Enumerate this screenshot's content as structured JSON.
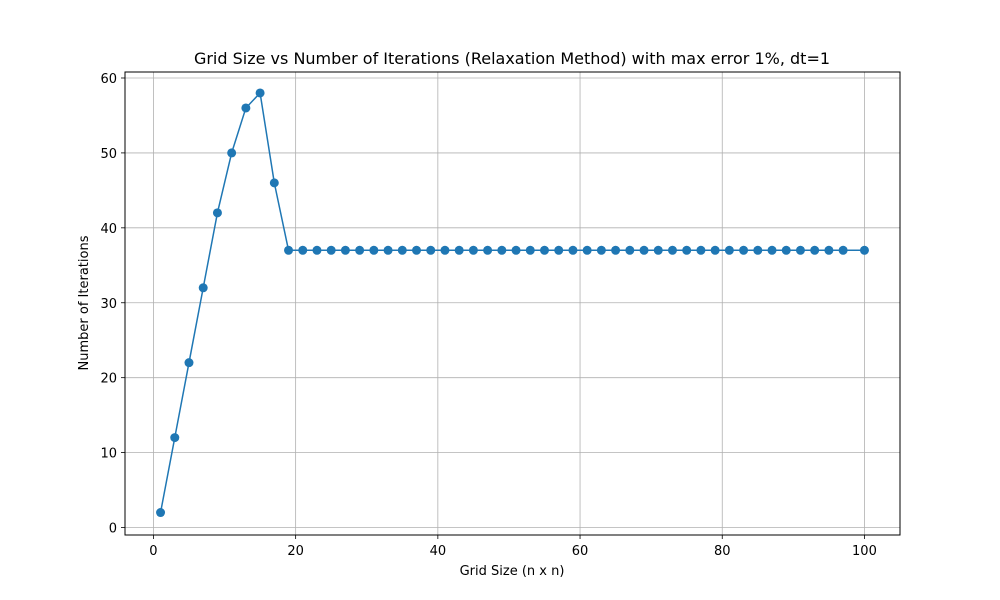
{
  "chart_data": {
    "type": "line",
    "title": "Grid Size vs Number of Iterations (Relaxation Method) with max error 1%, dt=1",
    "xlabel": "Grid Size (n x n)",
    "ylabel": "Number of Iterations",
    "xlim": [
      -4,
      105
    ],
    "ylim": [
      -1,
      60.8
    ],
    "x_ticks": [
      0,
      20,
      40,
      60,
      80,
      100
    ],
    "y_ticks": [
      0,
      10,
      20,
      30,
      40,
      50,
      60
    ],
    "grid": true,
    "marker": "circle",
    "color": "#1f77b4",
    "series": [
      {
        "x": [
          1,
          3,
          5,
          7,
          9,
          11,
          13,
          15,
          17,
          19,
          21,
          23,
          25,
          27,
          29,
          31,
          33,
          35,
          37,
          39,
          41,
          43,
          45,
          47,
          49,
          51,
          53,
          55,
          57,
          59,
          61,
          63,
          65,
          67,
          69,
          71,
          73,
          75,
          77,
          79,
          81,
          83,
          85,
          87,
          89,
          91,
          93,
          95,
          97,
          100
        ],
        "values": [
          2,
          12,
          22,
          32,
          42,
          50,
          56,
          58,
          46,
          37,
          37,
          37,
          37,
          37,
          37,
          37,
          37,
          37,
          37,
          37,
          37,
          37,
          37,
          37,
          37,
          37,
          37,
          37,
          37,
          37,
          37,
          37,
          37,
          37,
          37,
          37,
          37,
          37,
          37,
          37,
          37,
          37,
          37,
          37,
          37,
          37,
          37,
          37,
          37,
          37
        ]
      }
    ]
  }
}
